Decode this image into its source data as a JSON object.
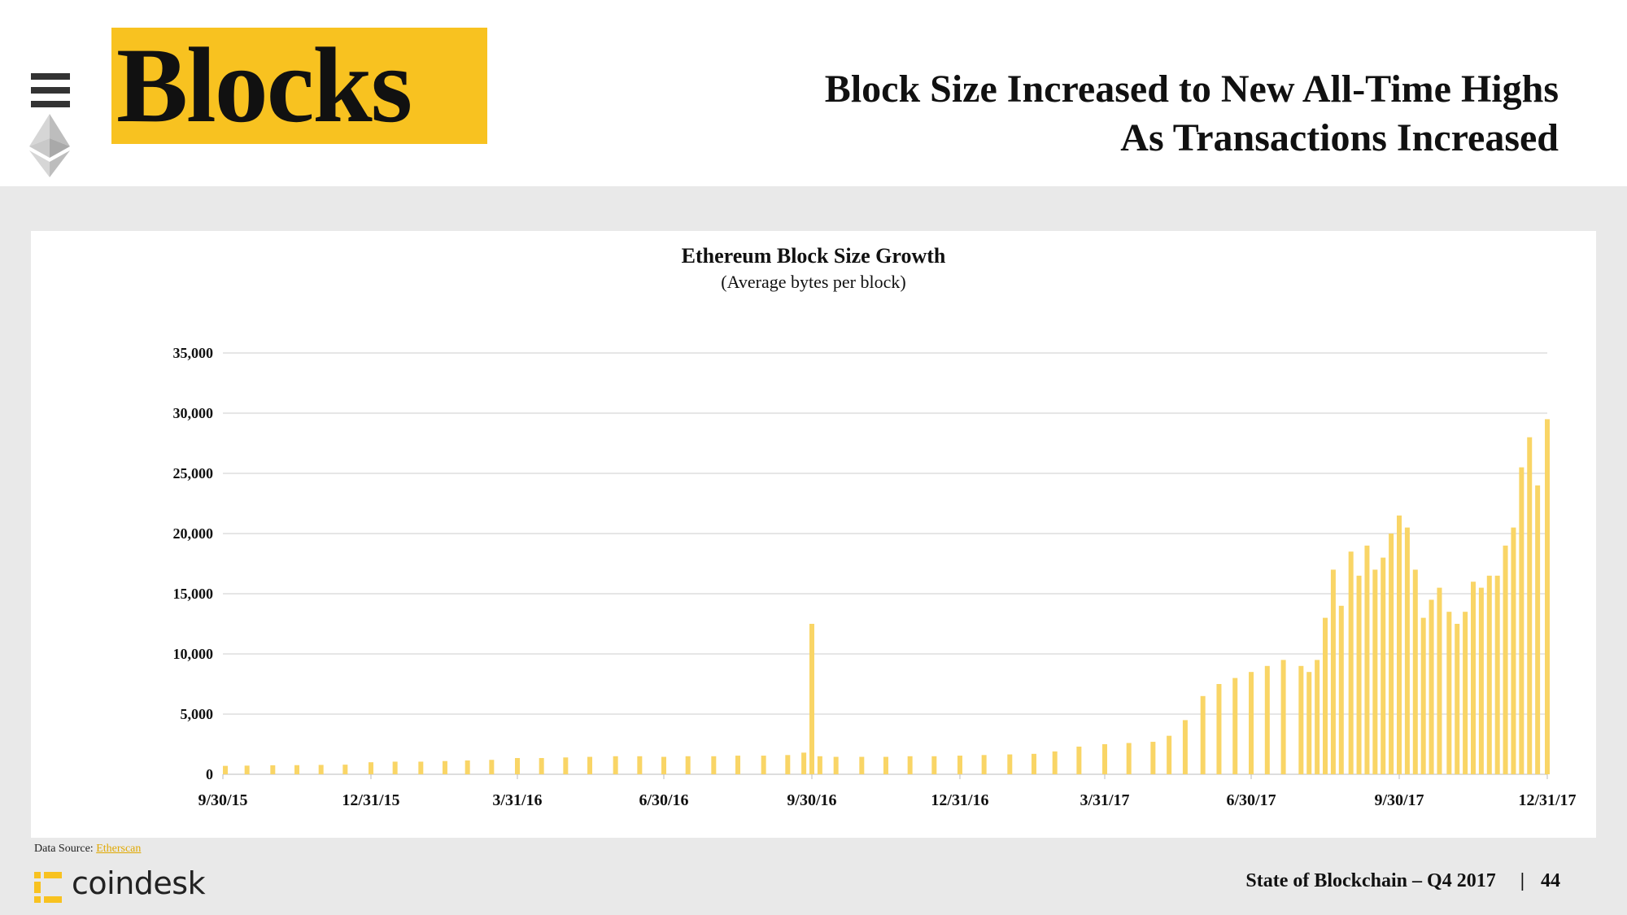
{
  "header": {
    "section_title": "Blocks",
    "headline_line1": "Block Size Increased to New All-Time Highs",
    "headline_line2": "As Transactions Increased"
  },
  "icons": {
    "menu": "hamburger-menu-icon",
    "logo": "ethereum-diamond-icon",
    "brand": "coindesk-logo-icon"
  },
  "colors": {
    "accent": "#f8c220",
    "bars": "#f9d566",
    "gridlines": "#cccccc",
    "background": "#e9e9e9"
  },
  "chart_data": {
    "type": "bar",
    "title": "Ethereum Block Size Growth",
    "subtitle": "(Average bytes per block)",
    "xlabel": "",
    "ylabel": "",
    "ylim": [
      0,
      35000
    ],
    "yticks": [
      0,
      5000,
      10000,
      15000,
      20000,
      25000,
      30000,
      35000
    ],
    "ytick_labels": [
      "0",
      "5,000",
      "10,000",
      "15,000",
      "20,000",
      "25,000",
      "30,000",
      "35,000"
    ],
    "xtick_labels": [
      "9/30/15",
      "12/31/15",
      "3/31/16",
      "6/30/16",
      "9/30/16",
      "12/31/16",
      "3/31/17",
      "6/30/17",
      "9/30/17",
      "12/31/17"
    ],
    "grid": true,
    "legend": "none",
    "series": [
      {
        "dates": [
          "9/30/15",
          "10/15/15",
          "10/31/15",
          "11/15/15",
          "11/30/15",
          "12/15/15",
          "12/31/15",
          "1/15/16",
          "1/31/16",
          "2/15/16",
          "2/29/16",
          "3/15/16",
          "3/31/16",
          "4/15/16",
          "4/30/16",
          "5/15/16",
          "5/31/16",
          "6/15/16",
          "6/30/16",
          "7/15/16",
          "7/31/16",
          "8/15/16",
          "8/31/16",
          "9/15/16",
          "9/25/16",
          "9/30/16",
          "10/5/16",
          "10/15/16",
          "10/31/16",
          "11/15/16",
          "11/30/16",
          "12/15/16",
          "12/31/16",
          "1/15/17",
          "1/31/17",
          "2/15/17",
          "2/28/17",
          "3/15/17",
          "3/31/17",
          "4/15/17",
          "4/30/17",
          "5/10/17",
          "5/20/17",
          "5/31/17",
          "6/10/17",
          "6/20/17",
          "6/30/17",
          "7/10/17",
          "7/20/17",
          "7/31/17",
          "8/5/17",
          "8/10/17",
          "8/15/17",
          "8/20/17",
          "8/25/17",
          "8/31/17",
          "9/5/17",
          "9/10/17",
          "9/15/17",
          "9/20/17",
          "9/25/17",
          "9/30/17",
          "10/5/17",
          "10/10/17",
          "10/15/17",
          "10/20/17",
          "10/25/17",
          "10/31/17",
          "11/5/17",
          "11/10/17",
          "11/15/17",
          "11/20/17",
          "11/25/17",
          "11/30/17",
          "12/5/17",
          "12/10/17",
          "12/15/17",
          "12/20/17",
          "12/25/17",
          "12/31/17"
        ],
        "values": [
          700,
          720,
          750,
          760,
          780,
          800,
          1000,
          1050,
          1050,
          1100,
          1150,
          1200,
          1350,
          1350,
          1400,
          1450,
          1500,
          1500,
          1450,
          1500,
          1500,
          1550,
          1550,
          1600,
          1800,
          12500,
          1500,
          1450,
          1450,
          1450,
          1500,
          1500,
          1550,
          1600,
          1650,
          1700,
          1900,
          2300,
          2500,
          2600,
          2700,
          3200,
          4500,
          6500,
          7500,
          8000,
          8500,
          9000,
          9500,
          9000,
          8500,
          9500,
          13000,
          17000,
          14000,
          18500,
          16500,
          19000,
          17000,
          18000,
          20000,
          21500,
          20500,
          17000,
          13000,
          14500,
          15500,
          13500,
          12500,
          13500,
          16000,
          15500,
          16500,
          16500,
          19000,
          20500,
          25500,
          28000,
          24000,
          29500
        ]
      }
    ]
  },
  "footer": {
    "data_source_label": "Data Source: ",
    "data_source_link": "Etherscan",
    "brand": "coindesk",
    "report": "State of Blockchain – Q4 2017",
    "separator": "|",
    "page": "44"
  }
}
